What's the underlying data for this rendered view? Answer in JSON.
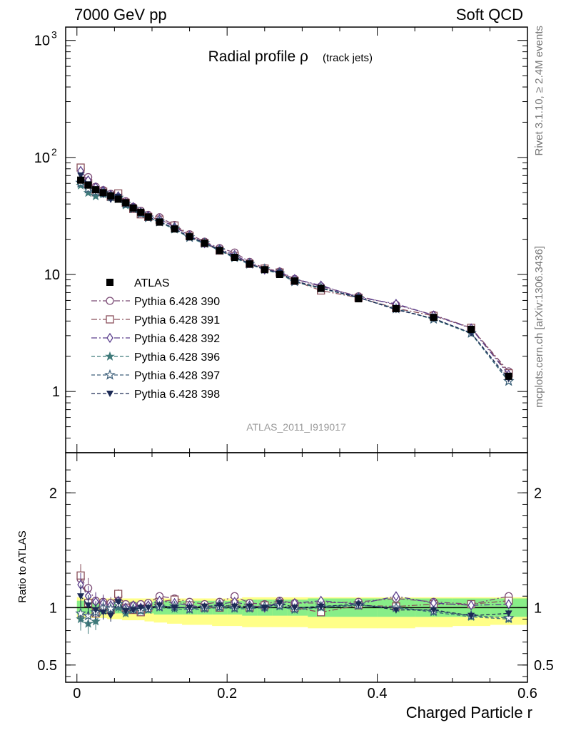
{
  "header": {
    "left": "7000 GeV pp",
    "right": "Soft QCD"
  },
  "side_labels": {
    "top": "Rivet 3.1.10, ≥ 2.4M events",
    "bottom": "mcplots.cern.ch [arXiv:1306.3436]"
  },
  "chart_data": {
    "type": "line",
    "title": "Radial profile ρ",
    "title_note": "(track jets)",
    "watermark": "ATLAS_2011_I919017",
    "xlabel": "Charged Particle r",
    "ylabel_ratio": "Ratio to ATLAS",
    "main": {
      "yscale": "log",
      "xlim": [
        -0.015,
        0.6
      ],
      "ylim": [
        0.3,
        1300
      ],
      "yticks": [
        {
          "v": 1,
          "label": "1"
        },
        {
          "v": 10,
          "label": "10"
        },
        {
          "v": 100,
          "label": "10",
          "sup": "2"
        },
        {
          "v": 1000,
          "label": "10",
          "sup": "3"
        }
      ]
    },
    "ratio": {
      "ylim": [
        0.35,
        2.35
      ],
      "yticks": [
        {
          "v": 0.5,
          "label": "0.5"
        },
        {
          "v": 1,
          "label": "1"
        },
        {
          "v": 2,
          "label": "2"
        }
      ]
    },
    "xticks": [
      {
        "v": 0,
        "label": "0"
      },
      {
        "v": 0.2,
        "label": "0.2"
      },
      {
        "v": 0.4,
        "label": "0.4"
      },
      {
        "v": 0.6,
        "label": "0.6"
      }
    ],
    "x": [
      0.005,
      0.015,
      0.025,
      0.035,
      0.045,
      0.055,
      0.065,
      0.075,
      0.085,
      0.095,
      0.11,
      0.13,
      0.15,
      0.17,
      0.19,
      0.21,
      0.23,
      0.25,
      0.27,
      0.29,
      0.325,
      0.375,
      0.425,
      0.475,
      0.525,
      0.575
    ],
    "data": {
      "name": "ATLAS",
      "values": [
        64,
        58,
        53,
        50,
        47,
        44,
        41,
        37,
        34,
        31,
        28,
        24.5,
        21,
        18.5,
        16,
        14,
        12.3,
        11,
        10,
        8.8,
        7.6,
        6.2,
        5.1,
        4.3,
        3.4,
        1.35
      ],
      "band_inner": [
        0.06,
        0.05,
        0.05,
        0.05,
        0.05,
        0.05,
        0.05,
        0.05,
        0.05,
        0.05,
        0.06,
        0.06,
        0.06,
        0.06,
        0.06,
        0.06,
        0.07,
        0.07,
        0.07,
        0.07,
        0.08,
        0.08,
        0.08,
        0.08,
        0.08,
        0.08
      ],
      "band_outer_low": [
        0.1,
        0.09,
        0.09,
        0.09,
        0.1,
        0.1,
        0.11,
        0.11,
        0.11,
        0.12,
        0.13,
        0.14,
        0.15,
        0.15,
        0.16,
        0.16,
        0.17,
        0.17,
        0.17,
        0.17,
        0.18,
        0.18,
        0.18,
        0.17,
        0.16,
        0.15
      ],
      "band_outer_high": [
        0.09,
        0.08,
        0.08,
        0.08,
        0.08,
        0.08,
        0.08,
        0.08,
        0.08,
        0.08,
        0.08,
        0.08,
        0.08,
        0.08,
        0.08,
        0.08,
        0.09,
        0.09,
        0.09,
        0.09,
        0.09,
        0.09,
        0.09,
        0.09,
        0.09,
        0.09
      ]
    },
    "series": [
      {
        "name": "Pythia 6.428 390",
        "marker": "circle-open",
        "color": "#7b4a75",
        "dash": "8,3,2,3",
        "ratio": [
          1.25,
          1.17,
          1.06,
          1.05,
          1.04,
          1.1,
          1.03,
          1.02,
          1.03,
          1.04,
          1.1,
          1.08,
          1.05,
          1.03,
          1.05,
          1.1,
          1.04,
          1.03,
          1.06,
          1.04,
          1.04,
          1.05,
          1.08,
          1.05,
          1.03,
          1.1
        ]
      },
      {
        "name": "Pythia 6.428 391",
        "marker": "square-open",
        "color": "#8a4f5a",
        "dash": "8,3,2,3",
        "ratio": [
          1.28,
          1.04,
          0.95,
          1.02,
          0.98,
          1.12,
          1.0,
          0.98,
          0.96,
          1.0,
          1.05,
          1.07,
          1.02,
          1.0,
          1.0,
          1.03,
          1.0,
          1.02,
          1.04,
          1.0,
          0.96,
          1.02,
          1.01,
          1.03,
          1.03,
          1.06
        ]
      },
      {
        "name": "Pythia 6.428 392",
        "marker": "diamond-open",
        "color": "#5a3e8c",
        "dash": "8,3,2,3",
        "ratio": [
          1.2,
          1.1,
          1.05,
          1.04,
          1.02,
          1.06,
          1.0,
          1.02,
          1.0,
          1.02,
          1.06,
          1.04,
          1.02,
          1.0,
          1.03,
          1.05,
          1.02,
          1.0,
          1.05,
          1.04,
          1.06,
          1.03,
          1.1,
          1.04,
          1.02,
          1.03
        ]
      },
      {
        "name": "Pythia 6.428 396",
        "marker": "star-filled",
        "color": "#3f7a7a",
        "dash": "5,3",
        "ratio": [
          0.9,
          0.86,
          0.88,
          0.97,
          0.97,
          1.0,
          0.95,
          0.98,
          0.97,
          0.98,
          1.0,
          0.99,
          0.98,
          0.99,
          1.0,
          0.99,
          0.99,
          1.0,
          1.01,
          0.98,
          1.0,
          1.02,
          1.0,
          0.96,
          0.92,
          0.9
        ]
      },
      {
        "name": "Pythia 6.428 397",
        "marker": "star-open",
        "color": "#3d5f7a",
        "dash": "5,3",
        "ratio": [
          0.95,
          0.93,
          0.96,
          1.0,
          0.99,
          1.03,
          0.98,
          0.99,
          0.98,
          0.99,
          1.01,
          1.01,
          0.99,
          1.0,
          1.01,
          1.0,
          1.0,
          1.01,
          1.02,
          0.99,
          1.01,
          1.02,
          1.0,
          0.97,
          0.93,
          0.91
        ]
      },
      {
        "name": "Pythia 6.428 398",
        "marker": "triangle-down",
        "color": "#1c2a55",
        "dash": "5,3",
        "ratio": [
          1.1,
          1.02,
          0.98,
          0.96,
          0.93,
          1.05,
          0.97,
          0.98,
          1.0,
          1.0,
          1.02,
          1.0,
          1.0,
          1.01,
          1.02,
          1.01,
          1.01,
          1.0,
          1.04,
          1.0,
          1.01,
          1.03,
          0.98,
          0.98,
          0.93,
          0.95
        ]
      }
    ],
    "colors": {
      "band_inner": "#88ee88",
      "band_outer": "#ffff88",
      "data": "#000000"
    }
  }
}
